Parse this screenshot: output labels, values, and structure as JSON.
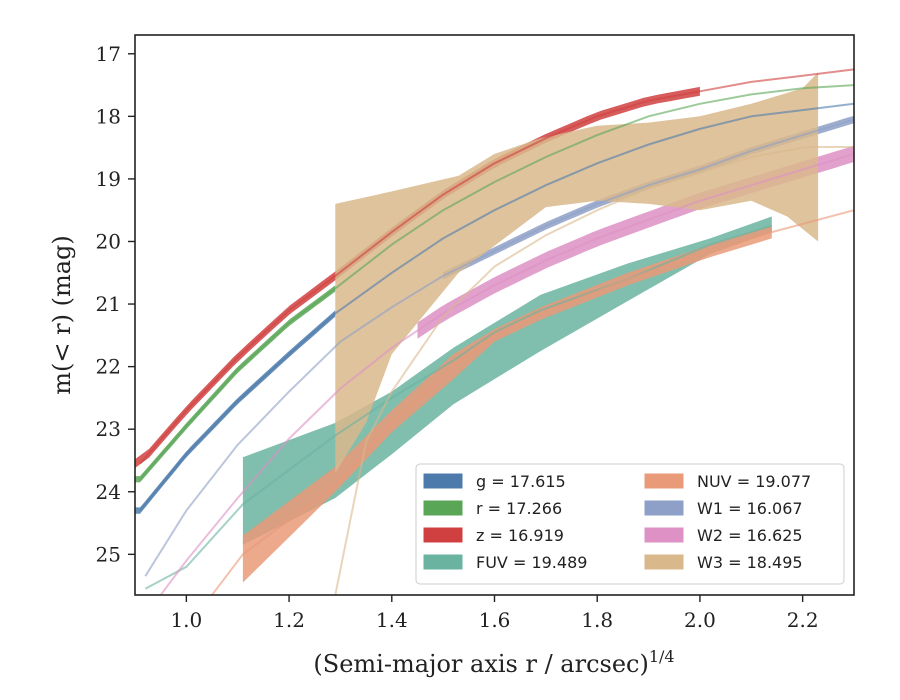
{
  "chart_data": {
    "type": "line",
    "xlabel": "(Semi-major axis r / arcsec)",
    "xlabel_superscript": "1/4",
    "ylabel": "m(< r) (mag)",
    "xlim": [
      0.9,
      2.3
    ],
    "ylim": [
      25.65,
      16.7
    ],
    "y_inverted": true,
    "grid": false,
    "legend_position": "lower-right",
    "x_ticks": [
      1.0,
      1.2,
      1.4,
      1.6,
      1.8,
      2.0,
      2.2
    ],
    "x_tick_labels": [
      "1.0",
      "1.2",
      "1.4",
      "1.6",
      "1.8",
      "2.0",
      "2.2"
    ],
    "y_ticks": [
      17,
      18,
      19,
      20,
      21,
      22,
      23,
      24,
      25
    ],
    "y_tick_labels": [
      "17",
      "18",
      "19",
      "20",
      "21",
      "22",
      "23",
      "24",
      "25"
    ],
    "series": [
      {
        "name": "g",
        "legend_label": "g = 17.615",
        "color": "#4c7bab",
        "data_x": [
          0.91,
          1.0,
          1.1,
          1.2,
          1.29,
          1.4,
          1.5,
          1.6,
          1.7,
          1.8,
          1.9,
          2.0,
          2.1,
          2.2,
          2.3
        ],
        "data_y": [
          24.3,
          23.4,
          22.55,
          21.8,
          21.15,
          20.5,
          19.95,
          19.5,
          19.1,
          18.75,
          18.45,
          18.2,
          18.0,
          17.9,
          17.8
        ],
        "band_x": [
          0.9,
          1.29
        ],
        "band_halfwidth": 0.05
      },
      {
        "name": "r",
        "legend_label": "r = 17.266",
        "color": "#5aa657",
        "data_x": [
          0.91,
          1.0,
          1.1,
          1.2,
          1.29,
          1.4,
          1.5,
          1.6,
          1.7,
          1.8,
          1.9,
          2.0,
          2.1,
          2.2,
          2.3
        ],
        "data_y": [
          23.8,
          22.95,
          22.05,
          21.3,
          20.75,
          20.05,
          19.5,
          19.05,
          18.65,
          18.3,
          18.0,
          17.8,
          17.65,
          17.55,
          17.5
        ],
        "band_x": [
          0.9,
          1.29
        ],
        "band_halfwidth": 0.05
      },
      {
        "name": "z",
        "legend_label": "z = 16.919",
        "color": "#d04040",
        "data_x": [
          0.91,
          1.0,
          1.1,
          1.2,
          1.29,
          1.4,
          1.5,
          1.6,
          1.7,
          1.8,
          1.9,
          2.0,
          2.1,
          2.2,
          2.3
        ],
        "data_y": [
          23.55,
          22.7,
          21.85,
          21.1,
          20.55,
          19.85,
          19.25,
          18.75,
          18.35,
          18.0,
          17.75,
          17.6,
          17.45,
          17.35,
          17.25
        ],
        "band_x": [
          0.9,
          2.0
        ],
        "band_halfwidth": 0.07
      },
      {
        "name": "FUV",
        "legend_label": "FUV = 19.489",
        "color": "#6ab3a0",
        "data_x": [
          0.92,
          1.0,
          1.11,
          1.29,
          1.4,
          1.52,
          1.6,
          1.69,
          1.86,
          2.02,
          2.14
        ],
        "data_y": [
          25.55,
          25.2,
          24.2,
          23.1,
          22.5,
          21.9,
          21.45,
          21.1,
          20.6,
          20.05,
          19.75
        ],
        "band_x": [
          1.11,
          2.14
        ],
        "band_upper": [
          23.45,
          22.9,
          22.4,
          21.7,
          21.3,
          20.85,
          20.35,
          19.95,
          19.6
        ],
        "band_lower": [
          24.85,
          24.1,
          23.4,
          22.6,
          22.2,
          21.75,
          20.95,
          20.2,
          19.85
        ],
        "band_upper_x": [
          1.11,
          1.29,
          1.4,
          1.52,
          1.6,
          1.69,
          1.86,
          2.02,
          2.14
        ],
        "band_lower_x": [
          1.11,
          1.29,
          1.4,
          1.52,
          1.6,
          1.69,
          1.86,
          2.02,
          2.14
        ]
      },
      {
        "name": "NUV",
        "legend_label": "NUV = 19.077",
        "color": "#e99a78",
        "data_x": [
          1.05,
          1.11,
          1.29,
          1.4,
          1.52,
          1.6,
          1.69,
          1.86,
          2.02,
          2.14,
          2.3
        ],
        "data_y": [
          25.65,
          25.0,
          23.9,
          22.9,
          22.0,
          21.5,
          21.15,
          20.6,
          20.15,
          19.85,
          19.5
        ],
        "band_x": [
          1.11,
          2.14
        ],
        "band_upper": [
          24.7,
          23.6,
          22.7,
          21.8,
          21.4,
          21.05,
          20.5,
          20.05,
          19.75
        ],
        "band_lower": [
          25.45,
          24.0,
          23.05,
          22.2,
          21.6,
          21.25,
          20.7,
          20.25,
          19.95
        ],
        "band_upper_x": [
          1.11,
          1.29,
          1.4,
          1.52,
          1.6,
          1.69,
          1.86,
          2.02,
          2.14
        ],
        "band_lower_x": [
          1.11,
          1.29,
          1.4,
          1.52,
          1.6,
          1.69,
          1.86,
          2.02,
          2.14
        ]
      },
      {
        "name": "W1",
        "legend_label": "W1 = 16.067",
        "color": "#8ea0c7",
        "data_x": [
          0.92,
          1.0,
          1.1,
          1.2,
          1.3,
          1.4,
          1.5,
          1.6,
          1.7,
          1.8,
          1.9,
          2.0,
          2.1,
          2.2,
          2.3
        ],
        "data_y": [
          25.35,
          24.3,
          23.25,
          22.4,
          21.6,
          21.05,
          20.55,
          20.15,
          19.75,
          19.4,
          19.1,
          18.85,
          18.55,
          18.3,
          18.05
        ],
        "band_x": [
          1.5,
          2.3
        ],
        "band_halfwidth": 0.06
      },
      {
        "name": "W2",
        "legend_label": "W2 = 16.625",
        "color": "#dd91c4",
        "data_x": [
          0.95,
          1.0,
          1.1,
          1.2,
          1.3,
          1.4,
          1.5,
          1.6,
          1.7,
          1.8,
          1.9,
          2.0,
          2.1,
          2.2,
          2.3
        ],
        "data_y": [
          25.65,
          25.1,
          24.1,
          23.15,
          22.35,
          21.7,
          21.15,
          20.7,
          20.3,
          19.95,
          19.65,
          19.35,
          19.1,
          18.85,
          18.6
        ],
        "band_x": [
          1.45,
          2.3
        ],
        "band_halfwidth": 0.13
      },
      {
        "name": "W3",
        "legend_label": "W3 = 18.495",
        "color": "#d9b98c",
        "data_x": [
          1.29,
          1.35,
          1.4,
          1.5,
          1.6,
          1.7,
          1.8,
          1.9,
          2.0,
          2.1,
          2.2,
          2.23,
          2.3
        ],
        "data_y": [
          25.65,
          23.2,
          22.4,
          21.2,
          20.4,
          19.9,
          19.5,
          19.15,
          18.9,
          18.65,
          18.5,
          18.49,
          18.49
        ],
        "band_x": [
          1.29,
          2.23
        ],
        "band_upper_x": [
          1.29,
          1.4,
          1.53,
          1.6,
          1.69,
          1.8,
          1.9,
          2.0,
          2.1,
          2.2,
          2.23
        ],
        "band_upper": [
          19.4,
          19.2,
          18.95,
          18.6,
          18.35,
          18.15,
          18.1,
          18.0,
          17.8,
          17.55,
          17.3
        ],
        "band_lower_x": [
          1.29,
          1.35,
          1.4,
          1.53,
          1.7,
          1.8,
          1.9,
          2.0,
          2.1,
          2.17,
          2.23
        ],
        "band_lower": [
          23.7,
          22.9,
          21.8,
          20.5,
          19.45,
          19.35,
          19.4,
          19.5,
          19.35,
          19.6,
          20.0
        ]
      }
    ]
  }
}
